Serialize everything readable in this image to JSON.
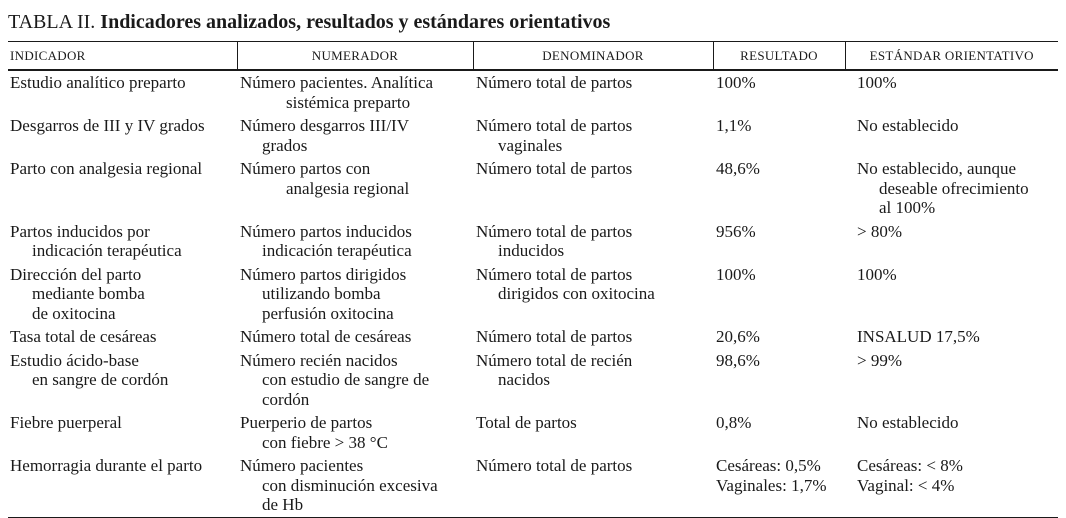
{
  "title": {
    "label": "TABLA II.",
    "text": "Indicadores analizados, resultados y estándares orientativos"
  },
  "table": {
    "columns": [
      "INDICADOR",
      "NUMERADOR",
      "DENOMINADOR",
      "RESULTADO",
      "ESTÁNDAR ORIENTATIVO"
    ],
    "rows": [
      {
        "indicador": [
          {
            "t": "Estudio analítico preparto",
            "i": 0
          }
        ],
        "numerador": [
          {
            "t": "Número pacientes. Analítica",
            "i": 0
          },
          {
            "t": "sistémica preparto",
            "i": 2
          }
        ],
        "denominador": [
          {
            "t": "Número total de partos",
            "i": 0
          }
        ],
        "resultado": [
          {
            "t": "100%",
            "i": 0
          }
        ],
        "estandar": [
          {
            "t": "100%",
            "i": 0
          }
        ]
      },
      {
        "indicador": [
          {
            "t": "Desgarros de III y IV grados",
            "i": 0
          }
        ],
        "numerador": [
          {
            "t": "Número desgarros III/IV",
            "i": 0
          },
          {
            "t": "grados",
            "i": 1
          }
        ],
        "denominador": [
          {
            "t": "Número total de partos",
            "i": 0
          },
          {
            "t": "vaginales",
            "i": 1
          }
        ],
        "resultado": [
          {
            "t": "1,1%",
            "i": 0
          }
        ],
        "estandar": [
          {
            "t": "No establecido",
            "i": 0
          }
        ]
      },
      {
        "indicador": [
          {
            "t": "Parto con analgesia regional",
            "i": 0
          }
        ],
        "numerador": [
          {
            "t": "Número partos con",
            "i": 0
          },
          {
            "t": "analgesia regional",
            "i": 2
          }
        ],
        "denominador": [
          {
            "t": "Número total de partos",
            "i": 0
          }
        ],
        "resultado": [
          {
            "t": "48,6%",
            "i": 0
          }
        ],
        "estandar": [
          {
            "t": "No establecido, aunque",
            "i": 0
          },
          {
            "t": "deseable ofrecimiento",
            "i": 1
          },
          {
            "t": "al 100%",
            "i": 1
          }
        ]
      },
      {
        "indicador": [
          {
            "t": "Partos inducidos por",
            "i": 0
          },
          {
            "t": "indicación terapéutica",
            "i": 1
          }
        ],
        "numerador": [
          {
            "t": "Número partos inducidos",
            "i": 0
          },
          {
            "t": "indicación terapéutica",
            "i": 1
          }
        ],
        "denominador": [
          {
            "t": "Número total de partos",
            "i": 0
          },
          {
            "t": "inducidos",
            "i": 1
          }
        ],
        "resultado": [
          {
            "t": "956%",
            "i": 0
          }
        ],
        "estandar": [
          {
            "t": "> 80%",
            "i": 0
          }
        ]
      },
      {
        "indicador": [
          {
            "t": "Dirección del parto",
            "i": 0
          },
          {
            "t": "mediante bomba",
            "i": 1
          },
          {
            "t": "de oxitocina",
            "i": 1
          }
        ],
        "numerador": [
          {
            "t": "Número partos dirigidos",
            "i": 0
          },
          {
            "t": "utilizando bomba",
            "i": 1
          },
          {
            "t": "perfusión oxitocina",
            "i": 1
          }
        ],
        "denominador": [
          {
            "t": "Número total de partos",
            "i": 0
          },
          {
            "t": "dirigidos con oxitocina",
            "i": 1
          }
        ],
        "resultado": [
          {
            "t": "100%",
            "i": 0
          }
        ],
        "estandar": [
          {
            "t": "100%",
            "i": 0
          }
        ]
      },
      {
        "indicador": [
          {
            "t": "Tasa total de cesáreas",
            "i": 0
          }
        ],
        "numerador": [
          {
            "t": "Número total de cesáreas",
            "i": 0
          }
        ],
        "denominador": [
          {
            "t": "Número total de partos",
            "i": 0
          }
        ],
        "resultado": [
          {
            "t": "20,6%",
            "i": 0
          }
        ],
        "estandar": [
          {
            "t": "INSALUD 17,5%",
            "i": 0
          }
        ]
      },
      {
        "indicador": [
          {
            "t": "Estudio ácido-base",
            "i": 0
          },
          {
            "t": "en sangre de cordón",
            "i": 1
          }
        ],
        "numerador": [
          {
            "t": "Número recién nacidos",
            "i": 0
          },
          {
            "t": "con estudio de sangre de",
            "i": 1
          },
          {
            "t": "cordón",
            "i": 1
          }
        ],
        "denominador": [
          {
            "t": "Número total de recién",
            "i": 0
          },
          {
            "t": "nacidos",
            "i": 1
          }
        ],
        "resultado": [
          {
            "t": "98,6%",
            "i": 0
          }
        ],
        "estandar": [
          {
            "t": "> 99%",
            "i": 0
          }
        ]
      },
      {
        "indicador": [
          {
            "t": "Fiebre puerperal",
            "i": 0
          }
        ],
        "numerador": [
          {
            "t": "Puerperio de partos",
            "i": 0
          },
          {
            "t": "con fiebre > 38 °C",
            "i": 1
          }
        ],
        "denominador": [
          {
            "t": "Total de partos",
            "i": 0
          }
        ],
        "resultado": [
          {
            "t": "0,8%",
            "i": 0
          }
        ],
        "estandar": [
          {
            "t": "No establecido",
            "i": 0
          }
        ]
      },
      {
        "indicador": [
          {
            "t": "Hemorragia durante el parto",
            "i": 0
          }
        ],
        "numerador": [
          {
            "t": "Número pacientes",
            "i": 0
          },
          {
            "t": "con disminución excesiva",
            "i": 1
          },
          {
            "t": "de Hb",
            "i": 1
          }
        ],
        "denominador": [
          {
            "t": "Número total de partos",
            "i": 0
          }
        ],
        "resultado": [
          {
            "t": "Cesáreas: 0,5%",
            "i": 0
          },
          {
            "t": "Vaginales: 1,7%",
            "i": 0
          }
        ],
        "estandar": [
          {
            "t": "Cesáreas: < 8%",
            "i": 0
          },
          {
            "t": "Vaginal: < 4%",
            "i": 0
          }
        ]
      }
    ]
  }
}
